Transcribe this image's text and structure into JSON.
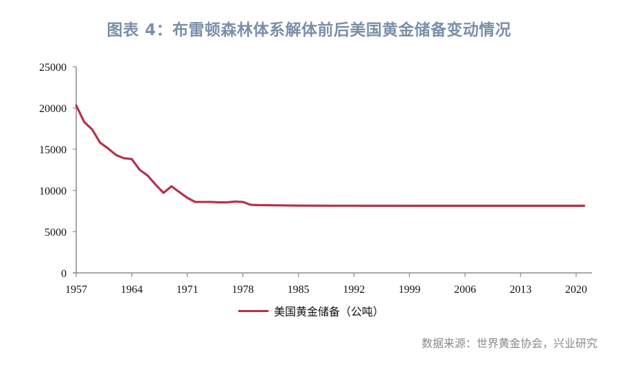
{
  "title": "图表 4：布雷顿森林体系解体前后美国黄金储备变动情况",
  "legend": {
    "label": "美国黄金储备（公吨）",
    "color": "#b5304a"
  },
  "source": "数据来源：世界黄金协会，兴业研究",
  "chart_data": {
    "type": "line",
    "title": "图表 4：布雷顿森林体系解体前后美国黄金储备变动情况",
    "xlabel": "",
    "ylabel": "",
    "ylim": [
      0,
      25000
    ],
    "xlim": [
      1957,
      2021
    ],
    "yticks": [
      0,
      5000,
      10000,
      15000,
      20000,
      25000
    ],
    "xticks": [
      1957,
      1964,
      1971,
      1978,
      1985,
      1992,
      1999,
      2006,
      2013,
      2020
    ],
    "grid": false,
    "legend_position": "bottom",
    "series": [
      {
        "name": "美国黄金储备（公吨）",
        "color": "#b5304a",
        "x": [
          1957,
          1958,
          1959,
          1960,
          1961,
          1962,
          1963,
          1964,
          1965,
          1966,
          1967,
          1968,
          1969,
          1970,
          1971,
          1972,
          1973,
          1974,
          1975,
          1976,
          1977,
          1978,
          1979,
          1980,
          1985,
          1990,
          2000,
          2010,
          2021
        ],
        "values": [
          20300,
          18300,
          17400,
          15800,
          15100,
          14300,
          13900,
          13800,
          12500,
          11800,
          10700,
          9700,
          10500,
          9800,
          9100,
          8600,
          8600,
          8600,
          8550,
          8550,
          8650,
          8600,
          8250,
          8220,
          8160,
          8140,
          8135,
          8133,
          8133
        ]
      }
    ]
  }
}
